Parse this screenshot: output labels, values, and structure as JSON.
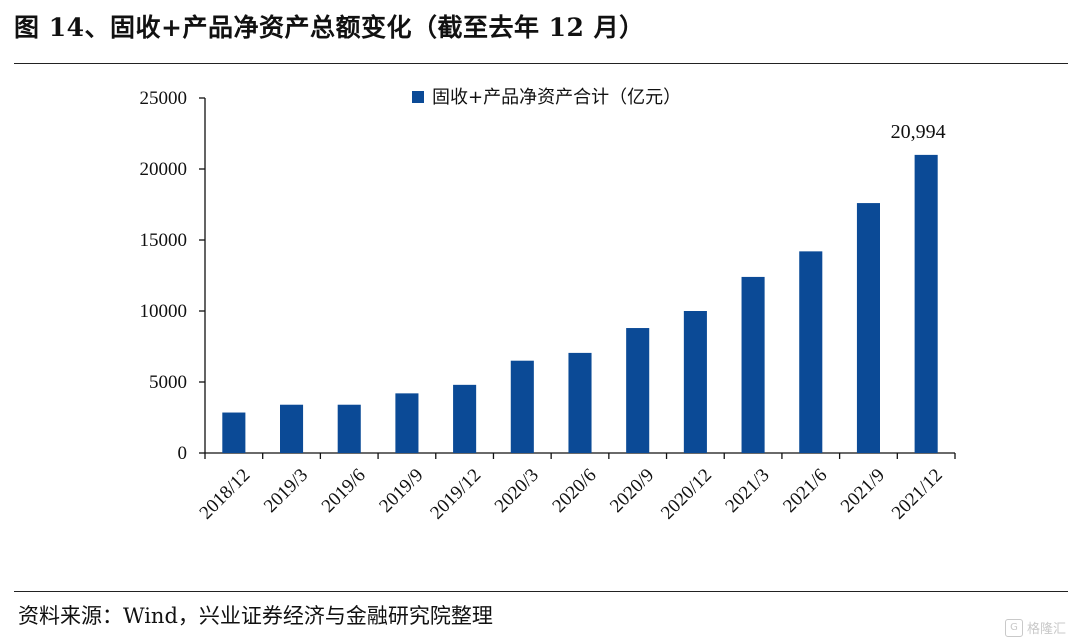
{
  "header": {
    "title": "图 14、固收+产品净资产总额变化（截至去年 12 月）"
  },
  "footer": {
    "source": "资料来源：Wind，兴业证券经济与金融研究院整理",
    "watermark": "格隆汇"
  },
  "chart_data": {
    "type": "bar",
    "title": "",
    "xlabel": "",
    "ylabel": "",
    "categories": [
      "2018/12",
      "2019/3",
      "2019/6",
      "2019/9",
      "2019/12",
      "2020/3",
      "2020/6",
      "2020/9",
      "2020/12",
      "2021/3",
      "2021/6",
      "2021/9",
      "2021/12"
    ],
    "series": [
      {
        "name": "固收+产品净资产合计（亿元）",
        "values": [
          2850,
          3400,
          3400,
          4200,
          4800,
          6500,
          7050,
          8800,
          10000,
          12400,
          14200,
          17600,
          20994
        ],
        "color": "#0b4a96"
      }
    ],
    "ylim": [
      0,
      25000
    ],
    "yticks": [
      "0",
      "5000",
      "10000",
      "15000",
      "20000",
      "25000"
    ],
    "annotations": [
      {
        "category": "2021/12",
        "text": "20,994"
      }
    ],
    "legend_position": "top-center",
    "grid": false
  }
}
